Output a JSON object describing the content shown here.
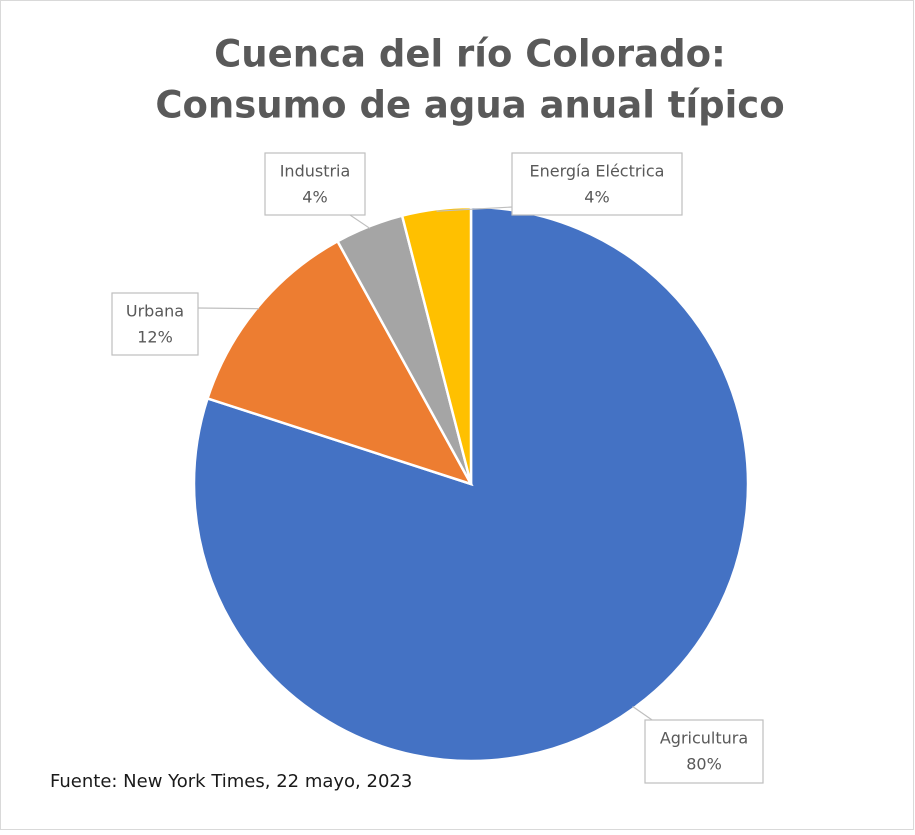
{
  "chart_data": {
    "type": "pie",
    "title": [
      "Cuenca del río Colorado:",
      "Consumo de agua anual típico"
    ],
    "categories": [
      "Agricultura",
      "Urbana",
      "Industria",
      "Energía Eléctrica"
    ],
    "values": [
      80,
      12,
      4,
      4
    ],
    "value_labels": [
      "80%",
      "12%",
      "4%",
      "4%"
    ],
    "colors": [
      "#4472c4",
      "#ed7d31",
      "#a5a5a5",
      "#ffc000"
    ],
    "source": "Fuente: New York Times, 22 mayo, 2023"
  }
}
